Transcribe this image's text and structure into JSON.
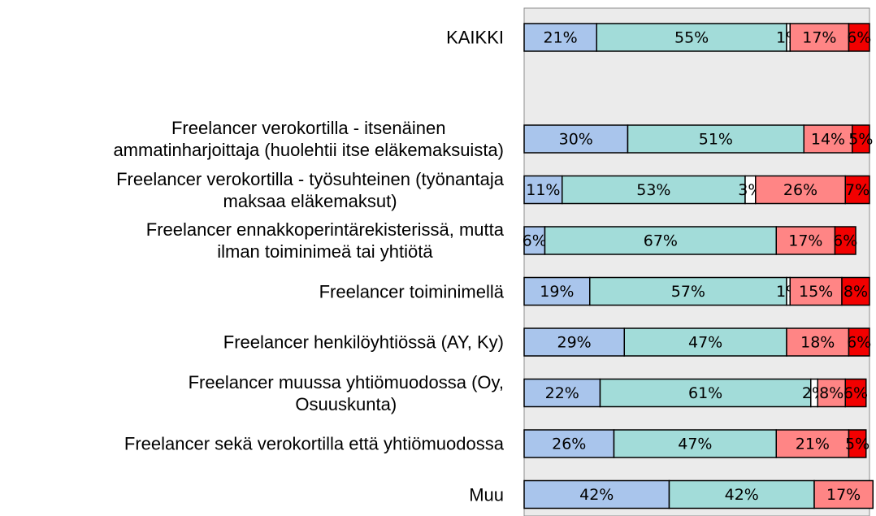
{
  "chart_data": {
    "type": "stacked_bar_horizontal",
    "categories": [
      "KAIKKI",
      null,
      "Freelancer verokortilla - itsenäinen\nammatinharjoittaja (huolehtii itse eläkemaksuista)",
      "Freelancer verokortilla - työsuhteinen (työnantaja\nmaksaa eläkemaksut)",
      "Freelancer ennakkoperintärekisterissä, mutta\nilman toiminimeä tai yhtiötä",
      "Freelancer toiminimellä",
      "Freelancer henkilöyhtiössä (AY, Ky)",
      "Freelancer muussa yhtiömuodossa (Oy,\nOsuuskunta)",
      "Freelancer sekä verokortilla että yhtiömuodossa",
      "Muu"
    ],
    "series": [
      {
        "color": "#a9c5ec",
        "values": [
          21,
          null,
          30,
          11,
          6,
          19,
          29,
          22,
          26,
          42
        ],
        "value_labels": [
          "21%",
          null,
          "30%",
          "11%",
          "6%",
          "19%",
          "29%",
          "22%",
          "26%",
          "42%"
        ]
      },
      {
        "color": "#a2dcd9",
        "values": [
          55,
          null,
          51,
          53,
          67,
          57,
          47,
          61,
          47,
          42
        ],
        "value_labels": [
          "55%",
          null,
          "51%",
          "53%",
          "67%",
          "57%",
          "47%",
          "61%",
          "47%",
          "42%"
        ]
      },
      {
        "color": "#ffffff",
        "values": [
          1,
          null,
          0,
          3,
          0,
          1,
          0,
          2,
          0,
          0
        ],
        "value_labels": [
          "1%",
          null,
          null,
          "3%",
          null,
          "1%",
          null,
          "2%",
          null,
          null
        ]
      },
      {
        "color": "#ff8585",
        "values": [
          17,
          null,
          14,
          26,
          17,
          15,
          18,
          8,
          21,
          17
        ],
        "value_labels": [
          "17%",
          null,
          "14%",
          "26%",
          "17%",
          "15%",
          "18%",
          "8%",
          "21%",
          "17%"
        ]
      },
      {
        "color": "#f20000",
        "values": [
          6,
          null,
          5,
          7,
          6,
          8,
          6,
          6,
          5,
          0
        ],
        "value_labels": [
          "6%",
          null,
          "5%",
          "7%",
          "6%",
          "8%",
          "6%",
          "6%",
          "5%",
          null
        ]
      }
    ],
    "xlim": [
      0,
      100
    ]
  }
}
